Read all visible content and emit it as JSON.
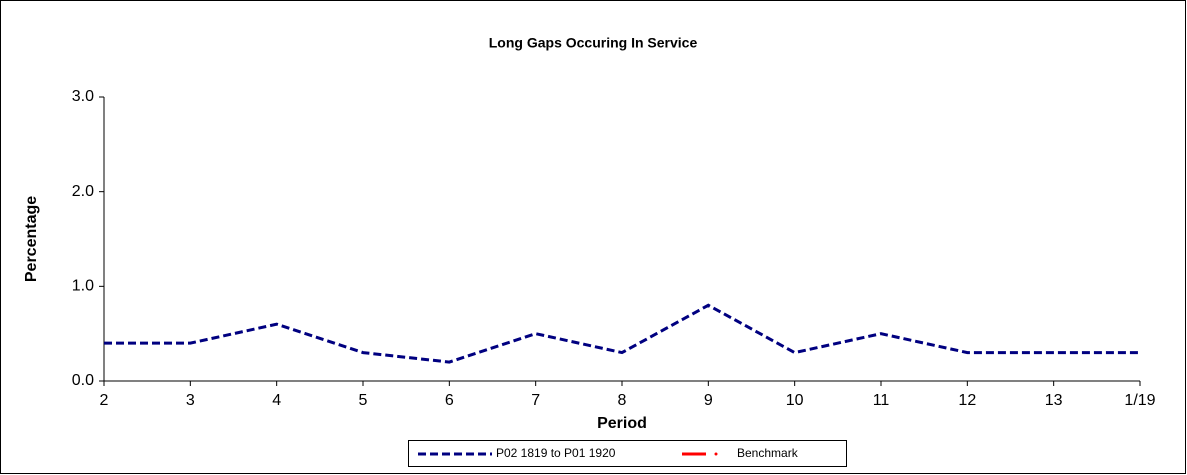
{
  "chart_data": {
    "type": "line",
    "title": "Long Gaps Occuring In Service",
    "x_label": "Period",
    "y_label": "Percentage",
    "categories": [
      "2",
      "3",
      "4",
      "5",
      "6",
      "7",
      "8",
      "9",
      "10",
      "11",
      "12",
      "13",
      "1/19"
    ],
    "series": [
      {
        "name": "P02 1819 to P01 1920",
        "color": "#000080",
        "values": [
          0.4,
          0.4,
          0.6,
          0.3,
          0.2,
          0.5,
          0.3,
          0.8,
          0.3,
          0.5,
          0.3,
          0.3,
          0.3
        ]
      },
      {
        "name": "Benchmark",
        "color": "#ff0000",
        "values": [
          null,
          null,
          null,
          null,
          null,
          null,
          null,
          null,
          null,
          null,
          null,
          null,
          null
        ]
      }
    ],
    "ylim": [
      0,
      3
    ],
    "yticks": [
      {
        "value": 0,
        "label": "0.0"
      },
      {
        "value": 1,
        "label": "1.0"
      },
      {
        "value": 2,
        "label": "2.0"
      },
      {
        "value": 3,
        "label": "3.0"
      }
    ],
    "grid": false,
    "legend": "bottom"
  }
}
